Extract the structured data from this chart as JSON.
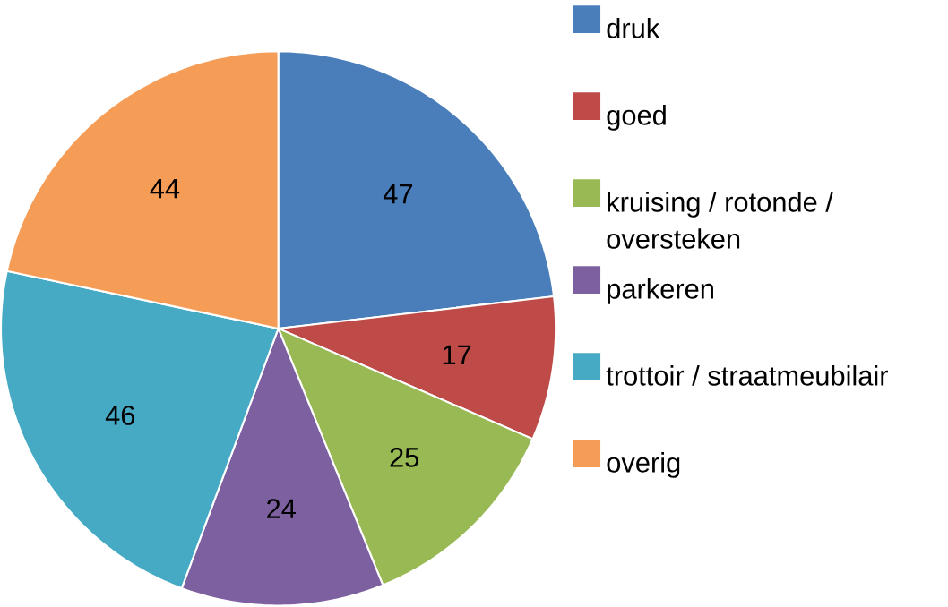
{
  "chart_data": {
    "type": "pie",
    "categories": [
      "druk",
      "goed",
      "kruising / rotonde / oversteken",
      "parkeren",
      "trottoir / straatmeubilair",
      "overig"
    ],
    "values": [
      47,
      17,
      25,
      24,
      46,
      44
    ],
    "colors": [
      "#4a7ebb",
      "#be4b48",
      "#98b954",
      "#7d60a0",
      "#46aac5",
      "#f59d56"
    ],
    "data_labels": true,
    "legend": "right"
  }
}
